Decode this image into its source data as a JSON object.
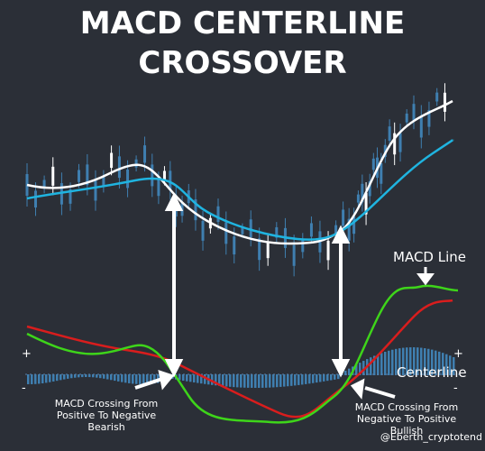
{
  "title": {
    "line1": "MACD CENTERLINE",
    "line2": "CROSSOVER"
  },
  "labels": {
    "macd_line": "MACD Line",
    "centerline": "Centerline",
    "plus": "+",
    "minus": "-",
    "bearish": "MACD Crossing From Positive To Negative Bearish",
    "bullish": "MACD Crossing From Negative To Positive Bullish"
  },
  "watermark": "@Eberth_cryptotend"
}
